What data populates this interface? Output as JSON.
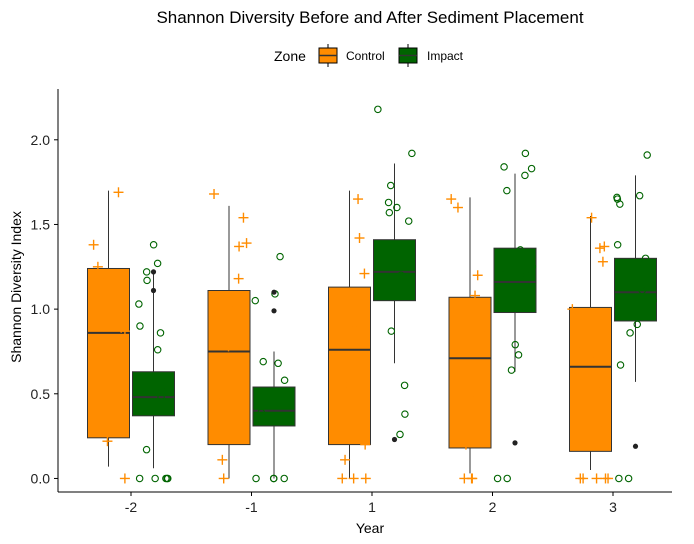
{
  "chart_data": {
    "type": "box",
    "title": "Shannon Diversity Before and After Sediment Placement",
    "xlabel": "Year",
    "ylabel": "Shannon Diversity Index",
    "ylim": [
      -0.08,
      2.3
    ],
    "yticks": [
      "0.0",
      "0.5",
      "1.0",
      "1.5",
      "2.0"
    ],
    "categories": [
      "-2",
      "-1",
      "1",
      "2",
      "3"
    ],
    "legend": {
      "title": "Zone",
      "position": "top",
      "entries": [
        "Control",
        "Impact"
      ]
    },
    "colors": {
      "Control": "#FF8C00",
      "Impact": "#006400",
      "outlier": "#222222"
    },
    "series": [
      {
        "name": "Control",
        "boxes": [
          {
            "category": "-2",
            "whisker_low": 0.07,
            "q1": 0.24,
            "median": 0.86,
            "q3": 1.24,
            "whisker_high": 1.7
          },
          {
            "category": "-1",
            "whisker_low": 0.0,
            "q1": 0.2,
            "median": 0.75,
            "q3": 1.11,
            "whisker_high": 1.61
          },
          {
            "category": "1",
            "whisker_low": 0.0,
            "q1": 0.2,
            "median": 0.76,
            "q3": 1.13,
            "whisker_high": 1.7
          },
          {
            "category": "2",
            "whisker_low": 0.03,
            "q1": 0.18,
            "median": 0.71,
            "q3": 1.07,
            "whisker_high": 1.66
          },
          {
            "category": "3",
            "whisker_low": 0.05,
            "q1": 0.16,
            "median": 0.66,
            "q3": 1.01,
            "whisker_high": 1.55
          }
        ],
        "jitter_points": [
          {
            "category": "-2",
            "values": [
              1.69,
              1.38,
              1.17,
              1.25,
              0.89,
              0.22,
              1.15,
              0.0,
              0.87
            ]
          },
          {
            "category": "-1",
            "values": [
              1.68,
              1.54,
              1.39,
              1.37,
              1.18,
              1.06,
              1.01,
              0.78,
              0.0,
              0.11,
              0.5
            ]
          },
          {
            "category": "1",
            "values": [
              1.65,
              1.42,
              1.21,
              0.9,
              0.56,
              0.54,
              0.2,
              0.11,
              0.0,
              0.0,
              0.0,
              0.66,
              0.7
            ]
          },
          {
            "category": "2",
            "values": [
              1.65,
              1.6,
              1.2,
              1.08,
              0.87,
              0.48,
              0.33,
              0.2,
              0.0,
              0.0,
              0.0
            ]
          },
          {
            "category": "3",
            "values": [
              1.54,
              1.37,
              1.36,
              1.28,
              1.0,
              0.78,
              0.72,
              0.54,
              0.0,
              0.0,
              0.0,
              0.0,
              0.0,
              0.3
            ]
          }
        ],
        "outliers": []
      },
      {
        "name": "Impact",
        "boxes": [
          {
            "category": "-2",
            "whisker_low": 0.06,
            "q1": 0.37,
            "median": 0.48,
            "q3": 0.63,
            "whisker_high": 1.21
          },
          {
            "category": "-1",
            "whisker_low": 0.0,
            "q1": 0.31,
            "median": 0.4,
            "q3": 0.54,
            "whisker_high": 0.75
          },
          {
            "category": "1",
            "whisker_low": 0.68,
            "q1": 1.05,
            "median": 1.22,
            "q3": 1.41,
            "whisker_high": 1.86
          },
          {
            "category": "2",
            "whisker_low": 0.63,
            "q1": 0.98,
            "median": 1.16,
            "q3": 1.36,
            "whisker_high": 1.8
          },
          {
            "category": "3",
            "whisker_low": 0.57,
            "q1": 0.93,
            "median": 1.1,
            "q3": 1.3,
            "whisker_high": 1.79
          }
        ],
        "jitter_points": [
          {
            "category": "-2",
            "values": [
              1.38,
              1.27,
              1.22,
              1.17,
              1.03,
              0.9,
              0.86,
              0.76,
              0.54,
              0.48,
              0.17,
              0.0,
              0.0,
              0.0,
              0.0,
              0.0
            ]
          },
          {
            "category": "-1",
            "values": [
              1.31,
              1.09,
              1.05,
              0.69,
              0.68,
              0.58,
              0.39,
              0.35,
              0.0,
              0.0,
              0.0,
              0.0
            ]
          },
          {
            "category": "1",
            "values": [
              2.18,
              1.92,
              1.73,
              1.63,
              1.6,
              1.57,
              1.52,
              1.2,
              0.87,
              0.55,
              0.38,
              0.26
            ]
          },
          {
            "category": "2",
            "values": [
              1.92,
              1.84,
              1.83,
              1.79,
              1.7,
              1.35,
              1.25,
              1.21,
              1.2,
              0.79,
              0.73,
              0.64,
              0.0,
              0.0
            ]
          },
          {
            "category": "3",
            "values": [
              1.91,
              1.67,
              1.66,
              1.65,
              1.62,
              1.38,
              1.3,
              1.27,
              1.11,
              1.05,
              0.91,
              0.86,
              0.67,
              0.0,
              0.0
            ]
          }
        ],
        "outliers": [
          {
            "category": "-2",
            "values": [
              1.22,
              1.11
            ]
          },
          {
            "category": "-1",
            "values": [
              1.1,
              0.99
            ]
          },
          {
            "category": "1",
            "values": [
              0.23
            ]
          },
          {
            "category": "2",
            "values": [
              0.21
            ]
          },
          {
            "category": "3",
            "values": [
              0.19
            ]
          }
        ]
      }
    ]
  }
}
